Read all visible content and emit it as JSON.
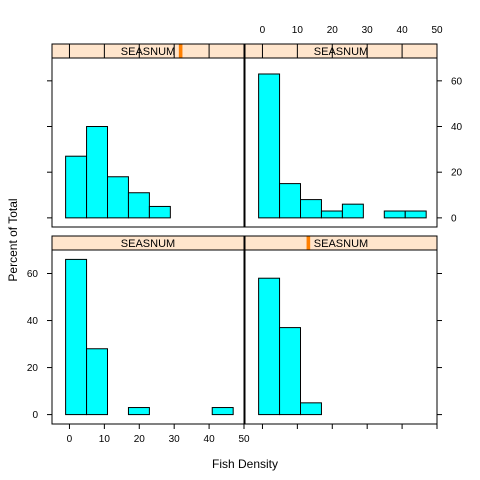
{
  "chart_data": {
    "type": "bar",
    "kind": "histogram-trellis",
    "xlabel": "Fish Density",
    "ylabel": "Percent of Total",
    "xlim": [
      -5,
      50
    ],
    "ylim": [
      -4,
      70
    ],
    "x_ticks": [
      0,
      10,
      20,
      30,
      40,
      50
    ],
    "y_ticks": [
      0,
      20,
      40,
      60
    ],
    "bin_width": 6.0,
    "colors": {
      "bar_fill": "#00ffff",
      "bar_stroke": "#000000",
      "strip_bg": "#ffe5cc",
      "strip_marker": "#ff7f00"
    },
    "panels": [
      {
        "position": "bottom-left",
        "strip_label": "SEASNUM",
        "strip_marker": null,
        "bins": [
          {
            "x0": -1.1,
            "x1": 4.9,
            "value": 66
          },
          {
            "x0": 4.9,
            "x1": 10.9,
            "value": 28
          },
          {
            "x0": 10.9,
            "x1": 16.9,
            "value": 0
          },
          {
            "x0": 16.9,
            "x1": 22.9,
            "value": 3
          },
          {
            "x0": 22.9,
            "x1": 28.9,
            "value": 0
          },
          {
            "x0": 28.9,
            "x1": 34.9,
            "value": 0
          },
          {
            "x0": 34.9,
            "x1": 40.9,
            "value": 0
          },
          {
            "x0": 40.9,
            "x1": 46.9,
            "value": 3
          }
        ]
      },
      {
        "position": "bottom-right",
        "strip_label": "SEASNUM",
        "strip_marker": 0.33,
        "bins": [
          {
            "x0": -1.1,
            "x1": 4.9,
            "value": 58
          },
          {
            "x0": 4.9,
            "x1": 10.9,
            "value": 37
          },
          {
            "x0": 10.9,
            "x1": 16.9,
            "value": 5
          }
        ]
      },
      {
        "position": "top-left",
        "strip_label": "SEASNUM",
        "strip_marker": 0.67,
        "bins": [
          {
            "x0": -1.1,
            "x1": 4.9,
            "value": 27
          },
          {
            "x0": 4.9,
            "x1": 10.9,
            "value": 40
          },
          {
            "x0": 10.9,
            "x1": 16.9,
            "value": 18
          },
          {
            "x0": 16.9,
            "x1": 22.9,
            "value": 11
          },
          {
            "x0": 22.9,
            "x1": 28.9,
            "value": 5
          }
        ]
      },
      {
        "position": "top-right",
        "strip_label": "SEASNUM",
        "strip_marker": null,
        "bins": [
          {
            "x0": -1.1,
            "x1": 4.9,
            "value": 63
          },
          {
            "x0": 4.9,
            "x1": 10.9,
            "value": 15
          },
          {
            "x0": 10.9,
            "x1": 16.9,
            "value": 8
          },
          {
            "x0": 16.9,
            "x1": 22.9,
            "value": 3
          },
          {
            "x0": 22.9,
            "x1": 28.9,
            "value": 6
          },
          {
            "x0": 28.9,
            "x1": 34.9,
            "value": 0
          },
          {
            "x0": 34.9,
            "x1": 40.9,
            "value": 3
          },
          {
            "x0": 40.9,
            "x1": 46.9,
            "value": 3
          }
        ]
      }
    ]
  }
}
